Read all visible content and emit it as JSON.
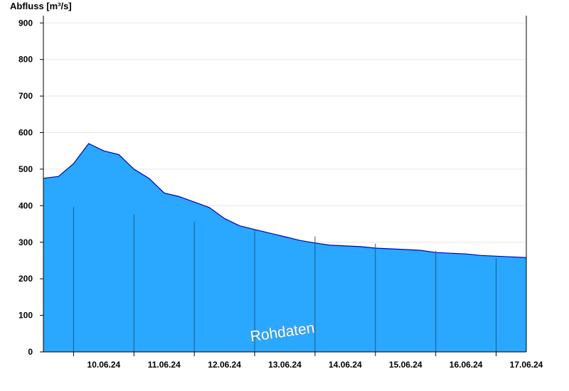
{
  "chart_data": {
    "type": "area",
    "ylabel": "Abfluss [m³/s]",
    "ylim": [
      0,
      920
    ],
    "yticks": [
      0,
      100,
      200,
      300,
      400,
      500,
      600,
      700,
      800,
      900
    ],
    "xlim": [
      "2024-06-09 12:00",
      "2024-06-17 12:00"
    ],
    "xtick_labels": [
      "10.06.24",
      "11.06.24",
      "12.06.24",
      "13.06.24",
      "14.06.24",
      "15.06.24",
      "16.06.24",
      "17.06.24"
    ],
    "grid": "horizontal",
    "annotation": "Rohdaten",
    "colors": {
      "fill": "#2aa8ff",
      "line": "#0000b4",
      "separator": "#1a5a8a",
      "grid": "#e6e6e6"
    },
    "series": [
      {
        "x": [
          "2024-06-09 12:00",
          "2024-06-09 18:00",
          "2024-06-10 00:00",
          "2024-06-10 06:00",
          "2024-06-10 12:00",
          "2024-06-10 18:00",
          "2024-06-11 00:00",
          "2024-06-11 06:00",
          "2024-06-11 12:00",
          "2024-06-11 18:00",
          "2024-06-12 00:00",
          "2024-06-12 06:00",
          "2024-06-12 12:00",
          "2024-06-12 18:00",
          "2024-06-13 00:00",
          "2024-06-13 06:00",
          "2024-06-13 12:00",
          "2024-06-13 18:00",
          "2024-06-14 00:00",
          "2024-06-14 06:00",
          "2024-06-14 12:00",
          "2024-06-14 18:00",
          "2024-06-15 00:00",
          "2024-06-15 06:00",
          "2024-06-15 12:00",
          "2024-06-15 18:00",
          "2024-06-16 00:00",
          "2024-06-16 06:00",
          "2024-06-16 12:00",
          "2024-06-16 18:00",
          "2024-06-17 00:00",
          "2024-06-17 06:00",
          "2024-06-17 12:00"
        ],
        "values": [
          475,
          480,
          515,
          570,
          550,
          540,
          500,
          475,
          435,
          425,
          410,
          395,
          365,
          345,
          335,
          325,
          315,
          305,
          298,
          292,
          290,
          288,
          284,
          282,
          280,
          278,
          272,
          270,
          268,
          264,
          262,
          260,
          258
        ]
      }
    ]
  }
}
